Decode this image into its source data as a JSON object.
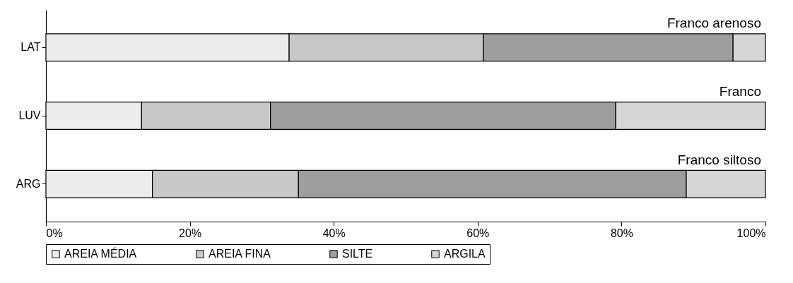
{
  "chart_data": {
    "type": "bar",
    "orientation": "horizontal",
    "stacked": true,
    "categories": [
      "LAT",
      "LUV",
      "ARG"
    ],
    "series": [
      {
        "name": "AREIA MÉDIA",
        "color": "#ececec",
        "values": [
          33.8,
          13.3,
          14.8
        ]
      },
      {
        "name": "AREIA FINA",
        "color": "#c8c8c8",
        "values": [
          27.0,
          17.9,
          20.3
        ]
      },
      {
        "name": "SILTE",
        "color": "#9e9e9e",
        "values": [
          34.7,
          48.0,
          53.9
        ]
      },
      {
        "name": "ARGILA",
        "color": "#d6d6d6",
        "values": [
          4.5,
          20.8,
          11.0
        ]
      }
    ],
    "xlim": [
      0,
      100
    ],
    "xticks": [
      {
        "value": 0,
        "label": "0%"
      },
      {
        "value": 20,
        "label": "20%"
      },
      {
        "value": 40,
        "label": "40%"
      },
      {
        "value": 60,
        "label": "60%"
      },
      {
        "value": 80,
        "label": "80%"
      },
      {
        "value": 100,
        "label": "100%"
      }
    ],
    "annotations": [
      "Franco arenoso",
      "Franco",
      "Franco siltoso"
    ],
    "grid": false,
    "legend": "bottom"
  }
}
